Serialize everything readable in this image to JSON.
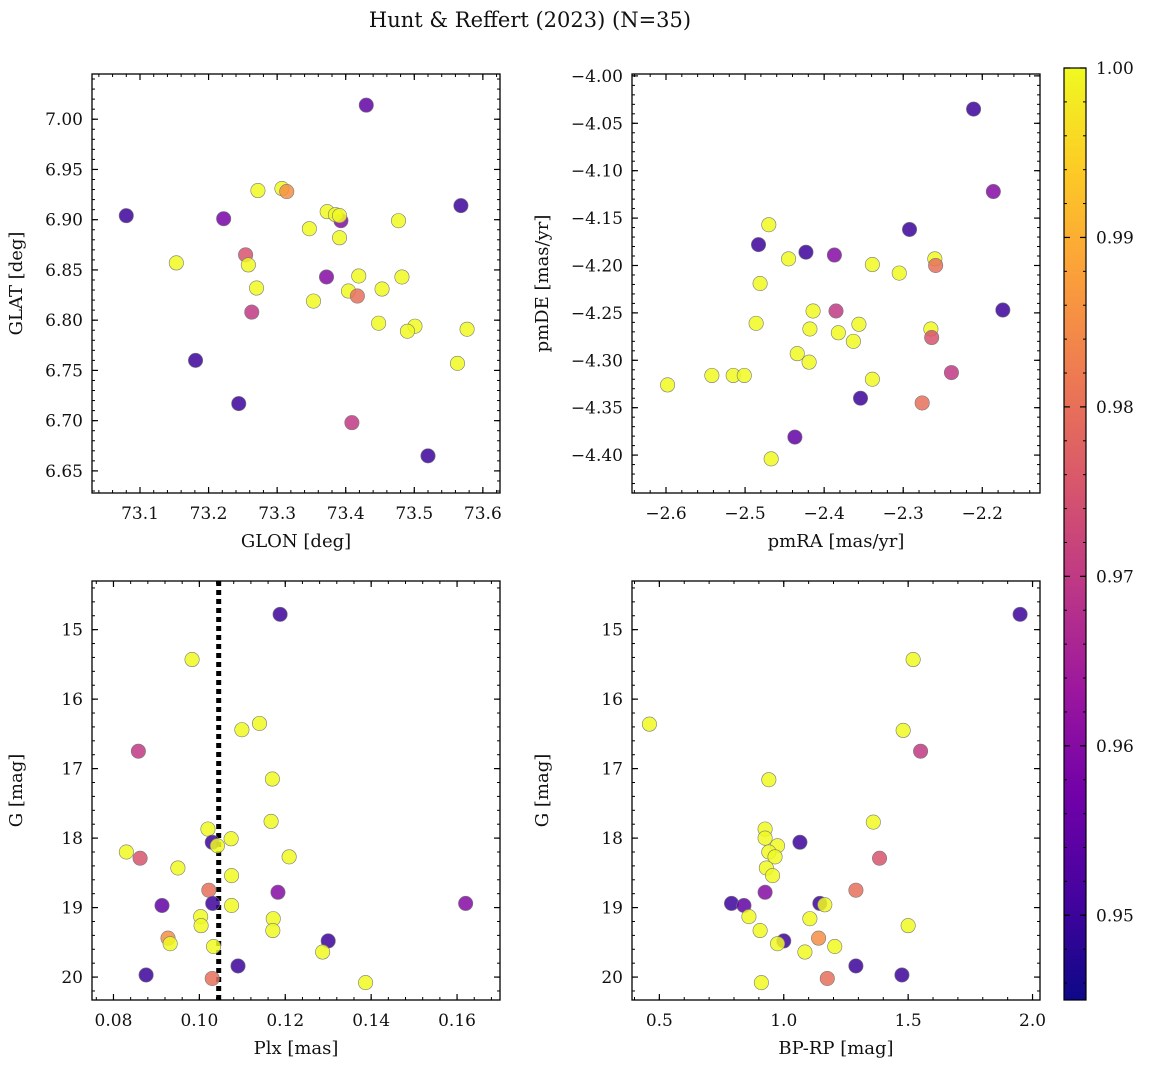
{
  "figure": {
    "title": "Hunt & Reffert (2023) (N=35)"
  },
  "colorbar": {
    "range": [
      0.945,
      1.0
    ],
    "ticks": [
      0.95,
      0.96,
      0.97,
      0.98,
      0.99,
      1.0
    ],
    "tick_labels": [
      "0.95",
      "0.96",
      "0.97",
      "0.98",
      "0.99",
      "1.00"
    ],
    "colormap": "plasma",
    "colormap_stops": [
      "#0d0887",
      "#46039f",
      "#7201a8",
      "#9c179e",
      "#bd3786",
      "#d8576b",
      "#ed7953",
      "#fb9f3a",
      "#fdca26",
      "#f0f921"
    ]
  },
  "chart_data": [
    {
      "id": "glon-glat",
      "type": "scatter",
      "xlabel": "GLON [deg]",
      "ylabel": "GLAT [deg]",
      "xlim": [
        73.03,
        73.625
      ],
      "ylim": [
        6.628,
        7.045
      ],
      "xticks": [
        73.1,
        73.2,
        73.3,
        73.4,
        73.5,
        73.6
      ],
      "xtick_labels": [
        "73.1",
        "73.2",
        "73.3",
        "73.4",
        "73.5",
        "73.6"
      ],
      "yticks": [
        6.65,
        6.7,
        6.75,
        6.8,
        6.85,
        6.9,
        6.95,
        7.0
      ],
      "ytick_labels": [
        "6.65",
        "6.70",
        "6.75",
        "6.80",
        "6.85",
        "6.90",
        "6.95",
        "7.00"
      ],
      "points": [
        {
          "x": 73.08,
          "y": 6.904,
          "c": 0.95
        },
        {
          "x": 73.43,
          "y": 7.014,
          "c": 0.955
        },
        {
          "x": 73.568,
          "y": 6.914,
          "c": 0.95
        },
        {
          "x": 73.222,
          "y": 6.901,
          "c": 0.958
        },
        {
          "x": 73.393,
          "y": 6.899,
          "c": 0.96
        },
        {
          "x": 73.272,
          "y": 6.929,
          "c": 1.0
        },
        {
          "x": 73.307,
          "y": 6.931,
          "c": 1.0
        },
        {
          "x": 73.314,
          "y": 6.928,
          "c": 0.985
        },
        {
          "x": 73.373,
          "y": 6.908,
          "c": 1.0
        },
        {
          "x": 73.385,
          "y": 6.905,
          "c": 1.0
        },
        {
          "x": 73.391,
          "y": 6.904,
          "c": 1.0
        },
        {
          "x": 73.477,
          "y": 6.899,
          "c": 1.0
        },
        {
          "x": 73.347,
          "y": 6.891,
          "c": 1.0
        },
        {
          "x": 73.391,
          "y": 6.882,
          "c": 1.0
        },
        {
          "x": 73.153,
          "y": 6.857,
          "c": 1.0
        },
        {
          "x": 73.254,
          "y": 6.865,
          "c": 0.975
        },
        {
          "x": 73.258,
          "y": 6.855,
          "c": 1.0
        },
        {
          "x": 73.372,
          "y": 6.843,
          "c": 0.96
        },
        {
          "x": 73.419,
          "y": 6.844,
          "c": 1.0
        },
        {
          "x": 73.482,
          "y": 6.843,
          "c": 1.0
        },
        {
          "x": 73.27,
          "y": 6.832,
          "c": 1.0
        },
        {
          "x": 73.453,
          "y": 6.831,
          "c": 1.0
        },
        {
          "x": 73.404,
          "y": 6.829,
          "c": 1.0
        },
        {
          "x": 73.417,
          "y": 6.824,
          "c": 0.98
        },
        {
          "x": 73.353,
          "y": 6.819,
          "c": 1.0
        },
        {
          "x": 73.263,
          "y": 6.808,
          "c": 0.97
        },
        {
          "x": 73.448,
          "y": 6.797,
          "c": 1.0
        },
        {
          "x": 73.501,
          "y": 6.794,
          "c": 1.0
        },
        {
          "x": 73.49,
          "y": 6.789,
          "c": 1.0
        },
        {
          "x": 73.577,
          "y": 6.791,
          "c": 1.0
        },
        {
          "x": 73.563,
          "y": 6.757,
          "c": 1.0
        },
        {
          "x": 73.181,
          "y": 6.76,
          "c": 0.95
        },
        {
          "x": 73.244,
          "y": 6.717,
          "c": 0.95
        },
        {
          "x": 73.409,
          "y": 6.698,
          "c": 0.97
        },
        {
          "x": 73.52,
          "y": 6.665,
          "c": 0.95
        }
      ]
    },
    {
      "id": "pmra-pmde",
      "type": "scatter",
      "xlabel": "pmRA [mas/yr]",
      "ylabel": "pmDE [mas/yr]",
      "xlim": [
        -2.643,
        -2.127
      ],
      "ylim": [
        -4.44,
        -3.998
      ],
      "xticks": [
        -2.6,
        -2.5,
        -2.4,
        -2.3,
        -2.2
      ],
      "xtick_labels": [
        "−2.6",
        "−2.5",
        "−2.4",
        "−2.3",
        "−2.2"
      ],
      "yticks": [
        -4.4,
        -4.35,
        -4.3,
        -4.25,
        -4.2,
        -4.15,
        -4.1,
        -4.05,
        -4.0
      ],
      "ytick_labels": [
        "−4.40",
        "−4.35",
        "−4.30",
        "−4.25",
        "−4.20",
        "−4.15",
        "−4.10",
        "−4.05",
        "−4.00"
      ],
      "points": [
        {
          "x": -2.211,
          "y": -4.035,
          "c": 0.95
        },
        {
          "x": -2.186,
          "y": -4.122,
          "c": 0.96
        },
        {
          "x": -2.47,
          "y": -4.157,
          "c": 1.0
        },
        {
          "x": -2.292,
          "y": -4.162,
          "c": 0.95
        },
        {
          "x": -2.483,
          "y": -4.178,
          "c": 0.95
        },
        {
          "x": -2.423,
          "y": -4.186,
          "c": 0.95
        },
        {
          "x": -2.387,
          "y": -4.189,
          "c": 0.96
        },
        {
          "x": -2.445,
          "y": -4.193,
          "c": 1.0
        },
        {
          "x": -2.26,
          "y": -4.193,
          "c": 1.0
        },
        {
          "x": -2.339,
          "y": -4.199,
          "c": 1.0
        },
        {
          "x": -2.259,
          "y": -4.2,
          "c": 0.98
        },
        {
          "x": -2.305,
          "y": -4.208,
          "c": 1.0
        },
        {
          "x": -2.481,
          "y": -4.219,
          "c": 1.0
        },
        {
          "x": -2.174,
          "y": -4.247,
          "c": 0.95
        },
        {
          "x": -2.414,
          "y": -4.248,
          "c": 1.0
        },
        {
          "x": -2.385,
          "y": -4.248,
          "c": 0.97
        },
        {
          "x": -2.486,
          "y": -4.261,
          "c": 1.0
        },
        {
          "x": -2.356,
          "y": -4.262,
          "c": 1.0
        },
        {
          "x": -2.418,
          "y": -4.267,
          "c": 1.0
        },
        {
          "x": -2.265,
          "y": -4.267,
          "c": 1.0
        },
        {
          "x": -2.382,
          "y": -4.271,
          "c": 1.0
        },
        {
          "x": -2.264,
          "y": -4.276,
          "c": 0.975
        },
        {
          "x": -2.363,
          "y": -4.28,
          "c": 1.0
        },
        {
          "x": -2.434,
          "y": -4.293,
          "c": 1.0
        },
        {
          "x": -2.419,
          "y": -4.302,
          "c": 1.0
        },
        {
          "x": -2.239,
          "y": -4.313,
          "c": 0.97
        },
        {
          "x": -2.542,
          "y": -4.316,
          "c": 1.0
        },
        {
          "x": -2.515,
          "y": -4.316,
          "c": 1.0
        },
        {
          "x": -2.501,
          "y": -4.316,
          "c": 1.0
        },
        {
          "x": -2.339,
          "y": -4.32,
          "c": 1.0
        },
        {
          "x": -2.598,
          "y": -4.326,
          "c": 1.0
        },
        {
          "x": -2.354,
          "y": -4.34,
          "c": 0.95
        },
        {
          "x": -2.276,
          "y": -4.345,
          "c": 0.98
        },
        {
          "x": -2.437,
          "y": -4.381,
          "c": 0.955
        },
        {
          "x": -2.467,
          "y": -4.404,
          "c": 1.0
        }
      ]
    },
    {
      "id": "plx-g",
      "type": "scatter",
      "xlabel": "Plx [mas]",
      "ylabel": "G [mag]",
      "xlim": [
        0.075,
        0.17
      ],
      "ylim": [
        20.33,
        14.3
      ],
      "y_inverted": true,
      "xticks": [
        0.08,
        0.1,
        0.12,
        0.14,
        0.16
      ],
      "xtick_labels": [
        "0.08",
        "0.10",
        "0.12",
        "0.14",
        "0.16"
      ],
      "yticks": [
        15,
        16,
        17,
        18,
        19,
        20
      ],
      "ytick_labels": [
        "15",
        "16",
        "17",
        "18",
        "19",
        "20"
      ],
      "vline": {
        "x": 0.1045,
        "style": "dotted",
        "color": "#000000"
      },
      "points": [
        {
          "x": 0.1188,
          "y": 14.78,
          "c": 0.95
        },
        {
          "x": 0.0983,
          "y": 15.43,
          "c": 1.0
        },
        {
          "x": 0.114,
          "y": 16.35,
          "c": 1.0
        },
        {
          "x": 0.1099,
          "y": 16.44,
          "c": 1.0
        },
        {
          "x": 0.0858,
          "y": 16.75,
          "c": 0.97
        },
        {
          "x": 0.117,
          "y": 17.15,
          "c": 1.0
        },
        {
          "x": 0.1167,
          "y": 17.76,
          "c": 1.0
        },
        {
          "x": 0.102,
          "y": 17.87,
          "c": 1.0
        },
        {
          "x": 0.1074,
          "y": 18.01,
          "c": 1.0
        },
        {
          "x": 0.103,
          "y": 18.06,
          "c": 0.95
        },
        {
          "x": 0.1042,
          "y": 18.11,
          "c": 1.0
        },
        {
          "x": 0.083,
          "y": 18.2,
          "c": 1.0
        },
        {
          "x": 0.1209,
          "y": 18.27,
          "c": 1.0
        },
        {
          "x": 0.0862,
          "y": 18.29,
          "c": 0.975
        },
        {
          "x": 0.095,
          "y": 18.43,
          "c": 1.0
        },
        {
          "x": 0.1075,
          "y": 18.54,
          "c": 1.0
        },
        {
          "x": 0.1022,
          "y": 18.75,
          "c": 0.98
        },
        {
          "x": 0.1183,
          "y": 18.78,
          "c": 0.96
        },
        {
          "x": 0.1031,
          "y": 18.94,
          "c": 0.95
        },
        {
          "x": 0.0913,
          "y": 18.97,
          "c": 0.955
        },
        {
          "x": 0.1075,
          "y": 18.97,
          "c": 1.0
        },
        {
          "x": 0.162,
          "y": 18.94,
          "c": 0.96
        },
        {
          "x": 0.1003,
          "y": 19.13,
          "c": 1.0
        },
        {
          "x": 0.1172,
          "y": 19.16,
          "c": 1.0
        },
        {
          "x": 0.1004,
          "y": 19.26,
          "c": 1.0
        },
        {
          "x": 0.1171,
          "y": 19.33,
          "c": 1.0
        },
        {
          "x": 0.0927,
          "y": 19.44,
          "c": 0.985
        },
        {
          "x": 0.13,
          "y": 19.48,
          "c": 0.95
        },
        {
          "x": 0.0932,
          "y": 19.52,
          "c": 1.0
        },
        {
          "x": 0.1033,
          "y": 19.56,
          "c": 1.0
        },
        {
          "x": 0.1287,
          "y": 19.64,
          "c": 1.0
        },
        {
          "x": 0.109,
          "y": 19.84,
          "c": 0.95
        },
        {
          "x": 0.0876,
          "y": 19.97,
          "c": 0.95
        },
        {
          "x": 0.103,
          "y": 20.02,
          "c": 0.98
        },
        {
          "x": 0.1387,
          "y": 20.08,
          "c": 1.0
        }
      ]
    },
    {
      "id": "bprp-g",
      "type": "scatter",
      "xlabel": "BP-RP [mag]",
      "ylabel": "G [mag]",
      "xlim": [
        0.39,
        2.03
      ],
      "ylim": [
        20.33,
        14.3
      ],
      "y_inverted": true,
      "xticks": [
        0.5,
        1.0,
        1.5,
        2.0
      ],
      "xtick_labels": [
        "0.5",
        "1.0",
        "1.5",
        "2.0"
      ],
      "yticks": [
        15,
        16,
        17,
        18,
        19,
        20
      ],
      "ytick_labels": [
        "15",
        "16",
        "17",
        "18",
        "19",
        "20"
      ],
      "points": [
        {
          "x": 1.95,
          "y": 14.78,
          "c": 0.95
        },
        {
          "x": 1.52,
          "y": 15.43,
          "c": 1.0
        },
        {
          "x": 0.46,
          "y": 16.36,
          "c": 1.0
        },
        {
          "x": 1.48,
          "y": 16.45,
          "c": 1.0
        },
        {
          "x": 1.55,
          "y": 16.75,
          "c": 0.97
        },
        {
          "x": 0.94,
          "y": 17.16,
          "c": 1.0
        },
        {
          "x": 1.36,
          "y": 17.77,
          "c": 1.0
        },
        {
          "x": 0.925,
          "y": 17.87,
          "c": 1.0
        },
        {
          "x": 0.925,
          "y": 18.0,
          "c": 1.0
        },
        {
          "x": 1.065,
          "y": 18.06,
          "c": 0.95
        },
        {
          "x": 0.975,
          "y": 18.11,
          "c": 1.0
        },
        {
          "x": 0.94,
          "y": 18.2,
          "c": 1.0
        },
        {
          "x": 0.965,
          "y": 18.27,
          "c": 1.0
        },
        {
          "x": 1.385,
          "y": 18.29,
          "c": 0.975
        },
        {
          "x": 0.93,
          "y": 18.43,
          "c": 1.0
        },
        {
          "x": 0.955,
          "y": 18.54,
          "c": 1.0
        },
        {
          "x": 1.29,
          "y": 18.75,
          "c": 0.98
        },
        {
          "x": 0.925,
          "y": 18.78,
          "c": 0.96
        },
        {
          "x": 0.79,
          "y": 18.94,
          "c": 0.95
        },
        {
          "x": 0.84,
          "y": 18.97,
          "c": 0.955
        },
        {
          "x": 1.145,
          "y": 18.94,
          "c": 0.95
        },
        {
          "x": 1.165,
          "y": 18.96,
          "c": 1.0
        },
        {
          "x": 0.86,
          "y": 19.13,
          "c": 1.0
        },
        {
          "x": 1.105,
          "y": 19.16,
          "c": 1.0
        },
        {
          "x": 1.5,
          "y": 19.26,
          "c": 1.0
        },
        {
          "x": 0.905,
          "y": 19.33,
          "c": 1.0
        },
        {
          "x": 1.14,
          "y": 19.44,
          "c": 0.985
        },
        {
          "x": 1.0,
          "y": 19.48,
          "c": 0.95
        },
        {
          "x": 0.975,
          "y": 19.52,
          "c": 1.0
        },
        {
          "x": 1.205,
          "y": 19.56,
          "c": 1.0
        },
        {
          "x": 1.085,
          "y": 19.64,
          "c": 1.0
        },
        {
          "x": 1.29,
          "y": 19.84,
          "c": 0.95
        },
        {
          "x": 1.475,
          "y": 19.97,
          "c": 0.95
        },
        {
          "x": 1.175,
          "y": 20.02,
          "c": 0.98
        },
        {
          "x": 0.91,
          "y": 20.08,
          "c": 1.0
        }
      ]
    }
  ]
}
